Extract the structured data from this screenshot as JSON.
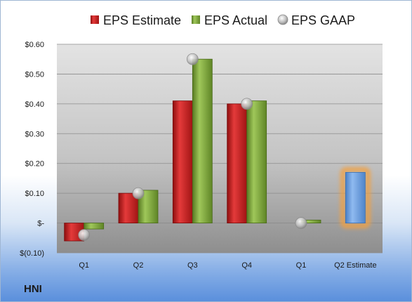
{
  "ticker": "HNI",
  "chart_data": {
    "type": "bar",
    "categories": [
      "Q1",
      "Q2",
      "Q3",
      "Q4",
      "Q1",
      "Q2 Estimate"
    ],
    "series": [
      {
        "name": "EPS Estimate",
        "color": "#cc2222",
        "values": [
          -0.06,
          0.1,
          0.41,
          0.4,
          null,
          null
        ]
      },
      {
        "name": "EPS Actual",
        "color": "#7aa23a",
        "values": [
          -0.02,
          0.11,
          0.55,
          0.41,
          0.01,
          null
        ]
      },
      {
        "name": "EPS GAAP",
        "color": "#b8b8b8",
        "marker": "circle",
        "values": [
          -0.04,
          0.1,
          0.55,
          0.4,
          0.0,
          null
        ]
      },
      {
        "name": "",
        "color": "#6aa0de",
        "highlight": "#f3a040",
        "values": [
          null,
          null,
          null,
          null,
          null,
          0.17
        ]
      }
    ],
    "yticks": [
      "$0.60",
      "$0.50",
      "$0.40",
      "$0.30",
      "$0.20",
      "$0.10",
      "$-",
      "$(0.10)"
    ],
    "ylim": [
      -0.1,
      0.6
    ],
    "grid": true,
    "legend": "top"
  }
}
